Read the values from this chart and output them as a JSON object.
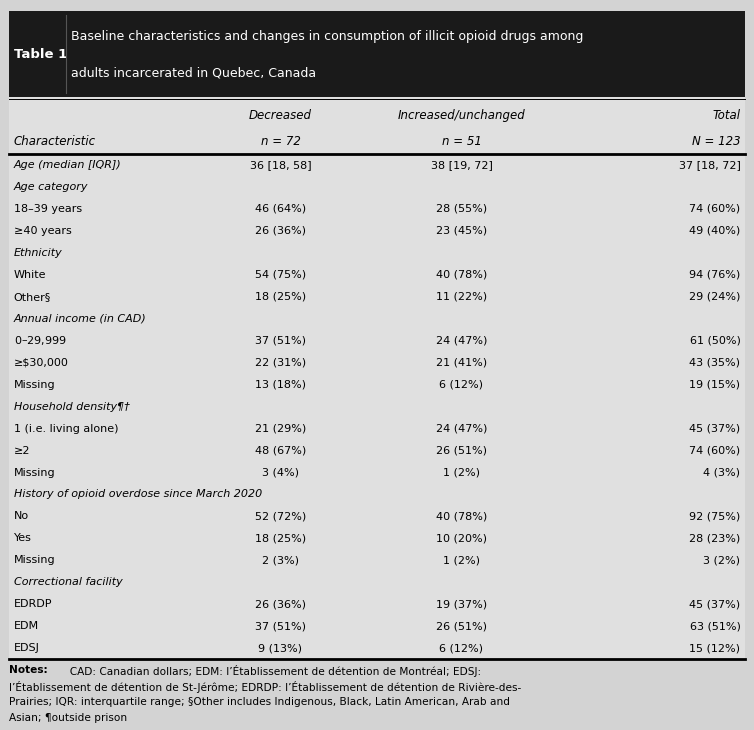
{
  "title_label": "Table 1",
  "title_line1": "Baseline characteristics and changes in consumption of illicit opioid drugs among",
  "title_line2": "adults incarcerated in Quebec, Canada",
  "rows": [
    {
      "label": "Age (median [IQR])",
      "col1": "36 [18, 58]",
      "col2": "38 [19, 72]",
      "col3": "37 [18, 72]",
      "italic": true,
      "category": false
    },
    {
      "label": "Age category",
      "col1": "",
      "col2": "",
      "col3": "",
      "italic": true,
      "category": true
    },
    {
      "label": "18–39 years",
      "col1": "46 (64%)",
      "col2": "28 (55%)",
      "col3": "74 (60%)",
      "italic": false,
      "category": false
    },
    {
      "label": "≥40 years",
      "col1": "26 (36%)",
      "col2": "23 (45%)",
      "col3": "49 (40%)",
      "italic": false,
      "category": false
    },
    {
      "label": "Ethnicity",
      "col1": "",
      "col2": "",
      "col3": "",
      "italic": true,
      "category": true
    },
    {
      "label": "White",
      "col1": "54 (75%)",
      "col2": "40 (78%)",
      "col3": "94 (76%)",
      "italic": false,
      "category": false
    },
    {
      "label": "Other§",
      "col1": "18 (25%)",
      "col2": "11 (22%)",
      "col3": "29 (24%)",
      "italic": false,
      "category": false
    },
    {
      "label": "Annual income (in CAD)",
      "col1": "",
      "col2": "",
      "col3": "",
      "italic": true,
      "category": true
    },
    {
      "label": "$0–$29,999",
      "col1": "37 (51%)",
      "col2": "24 (47%)",
      "col3": "61 (50%)",
      "italic": false,
      "category": false
    },
    {
      "label": "≥$30,000",
      "col1": "22 (31%)",
      "col2": "21 (41%)",
      "col3": "43 (35%)",
      "italic": false,
      "category": false
    },
    {
      "label": "Missing",
      "col1": "13 (18%)",
      "col2": "6 (12%)",
      "col3": "19 (15%)",
      "italic": false,
      "category": false
    },
    {
      "label": "Household density¶†",
      "col1": "",
      "col2": "",
      "col3": "",
      "italic": true,
      "category": true
    },
    {
      "label": "1 (i.e. living alone)",
      "col1": "21 (29%)",
      "col2": "24 (47%)",
      "col3": "45 (37%)",
      "italic": false,
      "category": false
    },
    {
      "label": "≥2",
      "col1": "48 (67%)",
      "col2": "26 (51%)",
      "col3": "74 (60%)",
      "italic": false,
      "category": false
    },
    {
      "label": "Missing",
      "col1": "3 (4%)",
      "col2": "1 (2%)",
      "col3": "4 (3%)",
      "italic": false,
      "category": false
    },
    {
      "label": "History of opioid overdose since March 2020",
      "col1": "",
      "col2": "",
      "col3": "",
      "italic": true,
      "category": true
    },
    {
      "label": "No",
      "col1": "52 (72%)",
      "col2": "40 (78%)",
      "col3": "92 (75%)",
      "italic": false,
      "category": false
    },
    {
      "label": "Yes",
      "col1": "18 (25%)",
      "col2": "10 (20%)",
      "col3": "28 (23%)",
      "italic": false,
      "category": false
    },
    {
      "label": "Missing",
      "col1": "2 (3%)",
      "col2": "1 (2%)",
      "col3": "3 (2%)",
      "italic": false,
      "category": false
    },
    {
      "label": "Correctional facility",
      "col1": "",
      "col2": "",
      "col3": "",
      "italic": true,
      "category": true
    },
    {
      "label": "EDRDP",
      "col1": "26 (36%)",
      "col2": "19 (37%)",
      "col3": "45 (37%)",
      "italic": false,
      "category": false
    },
    {
      "label": "EDM",
      "col1": "37 (51%)",
      "col2": "26 (51%)",
      "col3": "63 (51%)",
      "italic": false,
      "category": false
    },
    {
      "label": "EDSJ",
      "col1": "9 (13%)",
      "col2": "6 (12%)",
      "col3": "15 (12%)",
      "italic": false,
      "category": false
    }
  ],
  "notes_line1": "Notes:  CAD: Canadian dollars; EDM: l’Établissement de détention de Montréal; EDSJ:",
  "notes_line2": "l’Établissement de détention de St-Jérôme; EDRDP: l’Établissement de détention de Rivière-des-",
  "notes_line3": "Prairies; IQR: interquartile range; §Other includes Indigenous, Black, Latin American, Arab and",
  "notes_line4": "Asian; ¶outside prison",
  "bg_color": "#d3d3d3",
  "header_bg": "#1a1a1a",
  "table_bg": "#e0e0e0"
}
